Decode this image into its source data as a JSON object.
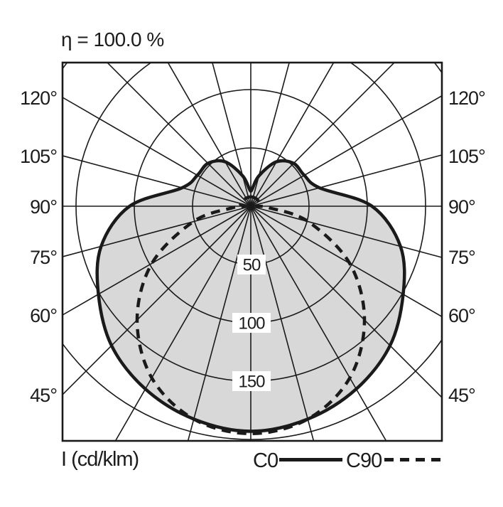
{
  "title": "η = 100.0 %",
  "axis": {
    "unit_label": "I (cd/klm)"
  },
  "legend": {
    "c0_label": "C0",
    "c90_label": "C90"
  },
  "colors": {
    "background": "#ffffff",
    "fill": "#d8d8d8",
    "line": "#1a1a1a",
    "grid": "#1a1a1a",
    "label_box": "#ffffff"
  },
  "chart_data": {
    "type": "polar_intensity_distribution",
    "title": "η = 100.0 %",
    "efficiency_percent": 100.0,
    "unit": "cd/klm",
    "radial_axis": {
      "ring_values": [
        50,
        100,
        150,
        200
      ],
      "labeled_rings": [
        "50",
        "100",
        "150"
      ],
      "ring_step": 50
    },
    "angular_axis": {
      "spoke_step_deg": 15,
      "labeled_angles_deg": [
        45,
        60,
        75,
        90,
        105,
        120
      ],
      "angle_label_suffix": "°"
    },
    "series": [
      {
        "name": "C0",
        "style": "solid",
        "angles_deg": [
          0,
          15,
          30,
          45,
          60,
          75,
          90,
          105,
          120,
          135,
          150,
          165,
          175,
          180
        ],
        "values": [
          193,
          189,
          181,
          169,
          151,
          133,
          104,
          61,
          53,
          52,
          44,
          27,
          15,
          13
        ]
      },
      {
        "name": "C90",
        "style": "dashed",
        "angles_deg": [
          0,
          15,
          30,
          45,
          60,
          75,
          85,
          90,
          100,
          120,
          140,
          160,
          180
        ],
        "values": [
          195,
          189,
          170,
          138,
          98,
          51,
          16,
          5,
          9,
          8,
          8,
          8,
          8
        ]
      }
    ]
  }
}
